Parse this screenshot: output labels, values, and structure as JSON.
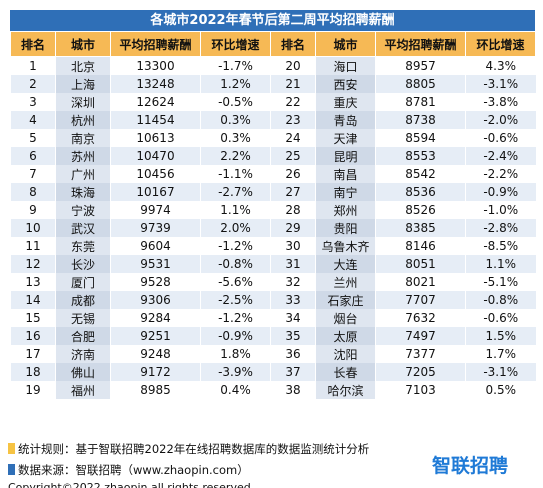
{
  "title": "各城市2022年春节后第二周平均招聘薪酬",
  "table": {
    "header": [
      "排名",
      "城市",
      "平均招聘薪酬",
      "环比增速",
      "排名",
      "城市",
      "平均招聘薪酬",
      "环比增速"
    ],
    "rows": [
      [
        1,
        "北京",
        13300,
        "-1.7%",
        20,
        "海口",
        8957,
        "4.3%"
      ],
      [
        2,
        "上海",
        13248,
        "1.2%",
        21,
        "西安",
        8805,
        "-3.1%"
      ],
      [
        3,
        "深圳",
        12624,
        "-0.5%",
        22,
        "重庆",
        8781,
        "-3.8%"
      ],
      [
        4,
        "杭州",
        11454,
        "0.3%",
        23,
        "青岛",
        8738,
        "-2.0%"
      ],
      [
        5,
        "南京",
        10613,
        "0.3%",
        24,
        "天津",
        8594,
        "-0.6%"
      ],
      [
        6,
        "苏州",
        10470,
        "2.2%",
        25,
        "昆明",
        8553,
        "-2.4%"
      ],
      [
        7,
        "广州",
        10456,
        "-1.1%",
        26,
        "南昌",
        8542,
        "-2.2%"
      ],
      [
        8,
        "珠海",
        10167,
        "-2.7%",
        27,
        "南宁",
        8536,
        "-0.9%"
      ],
      [
        9,
        "宁波",
        9974,
        "1.1%",
        28,
        "郑州",
        8526,
        "-1.0%"
      ],
      [
        10,
        "武汉",
        9739,
        "2.0%",
        29,
        "贵阳",
        8385,
        "-2.8%"
      ],
      [
        11,
        "东莞",
        9604,
        "-1.2%",
        30,
        "乌鲁木齐",
        8146,
        "-8.5%"
      ],
      [
        12,
        "长沙",
        9531,
        "-0.8%",
        31,
        "大连",
        8051,
        "1.1%"
      ],
      [
        13,
        "厦门",
        9528,
        "-5.6%",
        32,
        "兰州",
        8021,
        "-5.1%"
      ],
      [
        14,
        "成都",
        9306,
        "-2.5%",
        33,
        "石家庄",
        7707,
        "-0.8%"
      ],
      [
        15,
        "无锡",
        9284,
        "-1.2%",
        34,
        "烟台",
        7632,
        "-0.6%"
      ],
      [
        16,
        "合肥",
        9251,
        "-0.9%",
        35,
        "太原",
        7497,
        "1.5%"
      ],
      [
        17,
        "济南",
        9248,
        "1.8%",
        36,
        "沈阳",
        7377,
        "1.7%"
      ],
      [
        18,
        "佛山",
        9172,
        "-3.9%",
        37,
        "长春",
        7205,
        "-3.1%"
      ],
      [
        19,
        "福州",
        8985,
        "0.4%",
        38,
        "哈尔滨",
        7103,
        "0.5%"
      ]
    ]
  },
  "footer": {
    "rule": "统计规则：基于智联招聘2022年在线招聘数据库的数据监测统计分析",
    "source": "数据来源：智联招聘（www.zhaopin.com）",
    "logo": "智联招聘",
    "copyright": "Copyright©2022 zhaopin all rights reserved."
  }
}
